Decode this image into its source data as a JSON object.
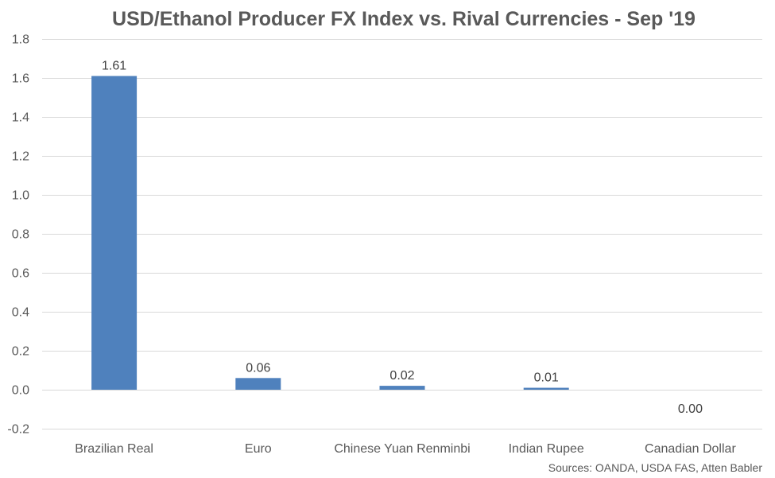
{
  "chart_data": {
    "type": "bar",
    "title": "USD/Ethanol Producer FX Index vs. Rival Currencies - Sep '19",
    "categories": [
      "Brazilian Real",
      "Euro",
      "Chinese Yuan Renminbi",
      "Indian Rupee",
      "Canadian Dollar"
    ],
    "values": [
      1.61,
      0.06,
      0.02,
      0.01,
      0.0
    ],
    "data_labels": [
      "1.61",
      "0.06",
      "0.02",
      "0.01",
      "0.00"
    ],
    "ylim": [
      -0.2,
      1.8
    ],
    "yticks": [
      -0.2,
      0.0,
      0.2,
      0.4,
      0.6,
      0.8,
      1.0,
      1.2,
      1.4,
      1.6,
      1.8
    ],
    "ytick_labels": [
      "-0.2",
      "0.0",
      "0.2",
      "0.4",
      "0.6",
      "0.8",
      "1.0",
      "1.2",
      "1.4",
      "1.6",
      "1.8"
    ],
    "xlabel": "",
    "ylabel": "",
    "grid": true,
    "legend": "none",
    "bar_color": "#4f81bd",
    "source": "Sources: OANDA, USDA FAS, Atten Babler"
  }
}
